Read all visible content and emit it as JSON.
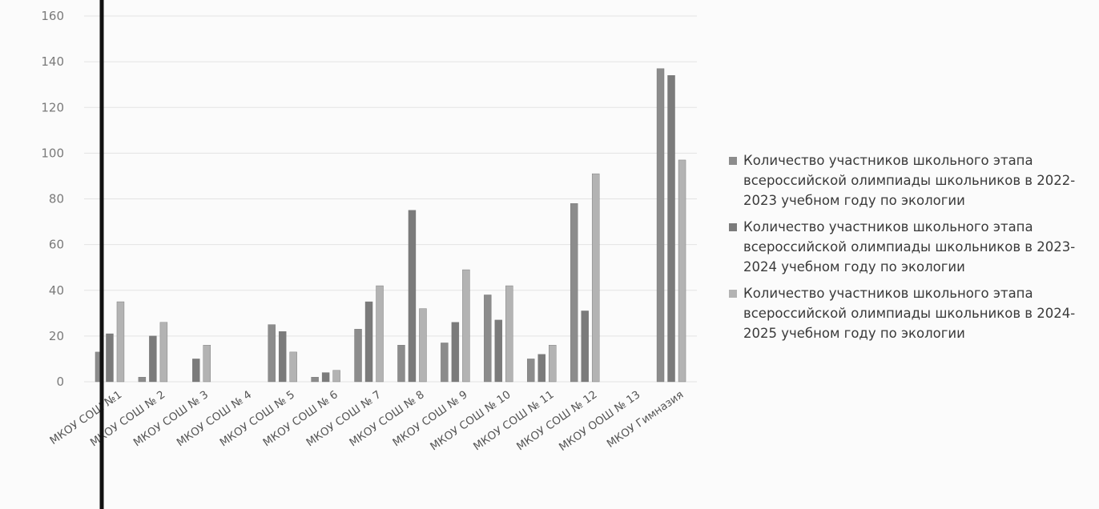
{
  "chart_data": {
    "type": "bar",
    "title": "",
    "xlabel": "",
    "ylabel": "",
    "ylim": [
      0,
      160
    ],
    "yticks": [
      0,
      20,
      40,
      60,
      80,
      100,
      120,
      140,
      160
    ],
    "grid": true,
    "legend_position": "right",
    "categories": [
      "МКОУ СОШ №1",
      "МКОУ СОШ № 2",
      "МКОУ СОШ № 3",
      "МКОУ СОШ № 4",
      "МКОУ СОШ № 5",
      "МКОУ СОШ № 6",
      "МКОУ СОШ № 7",
      "МКОУ СОШ № 8",
      "МКОУ СОШ № 9",
      "МКОУ СОШ № 10",
      "МКОУ СОШ № 11",
      "МКОУ СОШ № 12",
      "МКОУ ООШ № 13",
      "МКОУ Гимназия"
    ],
    "series": [
      {
        "name": "Количество участников школьного этапа всероссийской олимпиады школьников в 2022-2023 учебном году по экологии",
        "color": "#8c8c8c",
        "values": [
          13,
          2,
          0,
          0,
          25,
          2,
          23,
          16,
          17,
          38,
          10,
          78,
          0,
          137
        ]
      },
      {
        "name": "Количество участников школьного этапа всероссийской олимпиады школьников в 2023-2024 учебном году по экологии",
        "color": "#7b7b7b",
        "values": [
          21,
          20,
          10,
          0,
          22,
          4,
          35,
          75,
          26,
          27,
          12,
          31,
          0,
          134
        ]
      },
      {
        "name": "Количество участников школьного этапа всероссийской олимпиады школьников в 2024-2025 учебном году по экологии",
        "color": "#b3b3b3",
        "values": [
          35,
          26,
          16,
          0,
          13,
          5,
          42,
          32,
          49,
          42,
          16,
          91,
          0,
          97
        ]
      }
    ]
  }
}
